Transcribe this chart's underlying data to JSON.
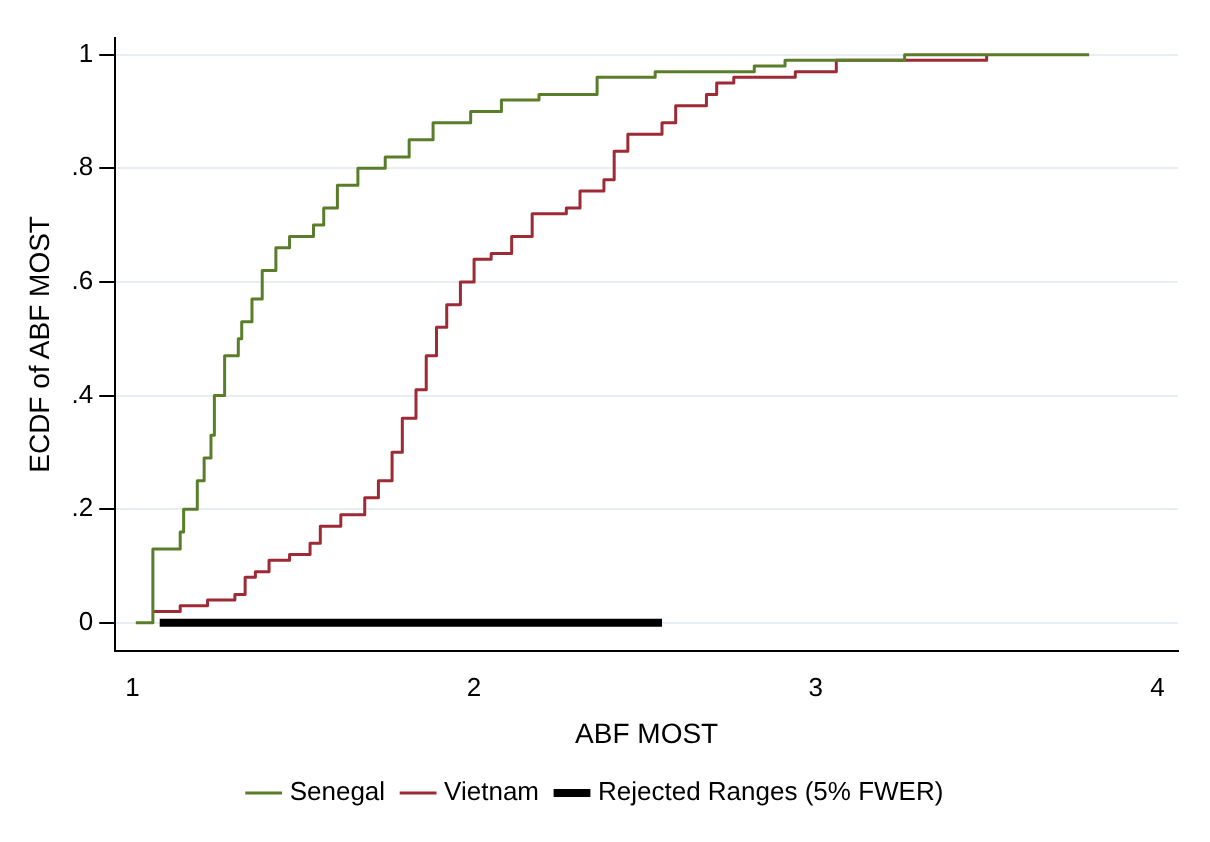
{
  "chart_data": {
    "type": "step",
    "xlabel": "ABF MOST",
    "ylabel": "ECDF of ABF MOST",
    "xlim": [
      0.95,
      4.06
    ],
    "xticks": [
      1,
      2,
      3,
      4
    ],
    "ylim": [
      -0.05,
      1.03
    ],
    "yticks": [
      0,
      {
        "value": 0.2,
        "label": ".2"
      },
      {
        "value": 0.4,
        "label": ".4"
      },
      {
        "value": 0.6,
        "label": ".6"
      },
      {
        "value": 0.8,
        "label": ".8"
      },
      1
    ],
    "grid": "y",
    "legend": "bottom",
    "series": [
      {
        "name": "Senegal",
        "color": "#5a7d2a",
        "x": [
          1.01,
          1.06,
          1.14,
          1.15,
          1.19,
          1.21,
          1.23,
          1.24,
          1.27,
          1.31,
          1.32,
          1.35,
          1.38,
          1.42,
          1.46,
          1.53,
          1.56,
          1.6,
          1.66,
          1.74,
          1.81,
          1.88,
          1.99,
          2.08,
          2.19,
          2.36,
          2.53,
          2.82,
          2.91,
          3.26,
          3.8
        ],
        "values": [
          0,
          0.13,
          0.16,
          0.2,
          0.25,
          0.29,
          0.33,
          0.4,
          0.47,
          0.5,
          0.53,
          0.57,
          0.62,
          0.66,
          0.68,
          0.7,
          0.73,
          0.77,
          0.8,
          0.82,
          0.85,
          0.88,
          0.9,
          0.92,
          0.93,
          0.96,
          0.97,
          0.98,
          0.99,
          1,
          1
        ]
      },
      {
        "name": "Vietnam",
        "color": "#9e2a35",
        "x": [
          1.06,
          1.14,
          1.22,
          1.3,
          1.33,
          1.36,
          1.4,
          1.46,
          1.52,
          1.55,
          1.61,
          1.68,
          1.72,
          1.76,
          1.79,
          1.83,
          1.86,
          1.89,
          1.92,
          1.96,
          2.0,
          2.05,
          2.11,
          2.17,
          2.27,
          2.31,
          2.38,
          2.41,
          2.45,
          2.55,
          2.59,
          2.68,
          2.71,
          2.76,
          2.94,
          3.06,
          3.27,
          3.5
        ],
        "values": [
          0.02,
          0.03,
          0.04,
          0.05,
          0.08,
          0.09,
          0.11,
          0.12,
          0.14,
          0.17,
          0.19,
          0.22,
          0.25,
          0.3,
          0.36,
          0.41,
          0.47,
          0.52,
          0.56,
          0.6,
          0.64,
          0.65,
          0.68,
          0.72,
          0.73,
          0.76,
          0.78,
          0.83,
          0.86,
          0.88,
          0.91,
          0.93,
          0.95,
          0.96,
          0.97,
          0.99,
          0.99,
          1
        ]
      },
      {
        "name": "Rejected Ranges (5% FWER)",
        "type": "line",
        "color": "#000000",
        "x": [
          1.08,
          2.55
        ],
        "values": [
          0,
          0
        ]
      }
    ]
  }
}
